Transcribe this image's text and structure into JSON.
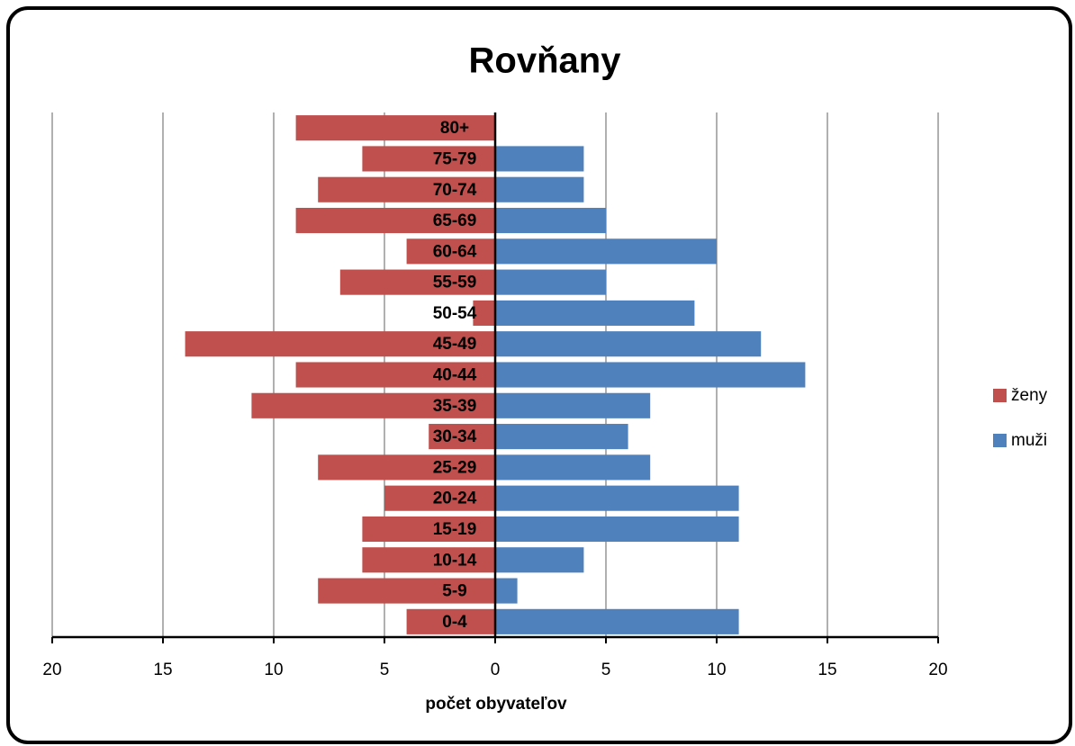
{
  "chart_data": {
    "type": "pyramid",
    "title": "Rovňany",
    "x_label": "počet obyvateľov",
    "categories": [
      "0-4",
      "5-9",
      "10-14",
      "15-19",
      "20-24",
      "25-29",
      "30-34",
      "35-39",
      "40-44",
      "45-49",
      "50-54",
      "55-59",
      "60-64",
      "65-69",
      "70-74",
      "75-79",
      "80+"
    ],
    "series": [
      {
        "name": "ženy",
        "color": "#c0504d",
        "values": [
          -4,
          -8,
          -6,
          -6,
          -5,
          -8,
          -3,
          -11,
          -9,
          -14,
          -1,
          -7,
          -4,
          -9,
          -8,
          -6,
          -9
        ]
      },
      {
        "name": "muži",
        "color": "#4f81bd",
        "values": [
          11,
          1,
          4,
          11,
          11,
          7,
          6,
          7,
          14,
          12,
          9,
          5,
          10,
          5,
          4,
          4,
          0
        ]
      }
    ],
    "xlim": [
      -20,
      20
    ],
    "xticks": [
      {
        "value": -20,
        "label": "20"
      },
      {
        "value": -15,
        "label": "15"
      },
      {
        "value": -10,
        "label": "10"
      },
      {
        "value": -5,
        "label": "5"
      },
      0,
      5,
      10,
      15,
      20
    ],
    "grid": true,
    "legend": "right"
  }
}
